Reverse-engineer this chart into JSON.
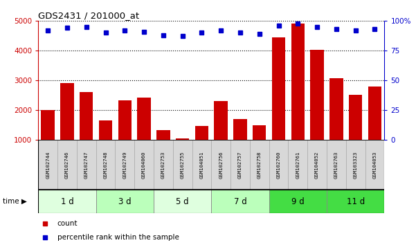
{
  "title": "GDS2431 / 201000_at",
  "samples": [
    "GSM102744",
    "GSM102746",
    "GSM102747",
    "GSM102748",
    "GSM102749",
    "GSM104060",
    "GSM102753",
    "GSM102755",
    "GSM104051",
    "GSM102756",
    "GSM102757",
    "GSM102758",
    "GSM102760",
    "GSM102761",
    "GSM104052",
    "GSM102763",
    "GSM103323",
    "GSM104053"
  ],
  "counts": [
    2000,
    2900,
    2600,
    1650,
    2330,
    2420,
    1310,
    1050,
    1460,
    2300,
    1700,
    1490,
    4450,
    4900,
    4030,
    3060,
    2520,
    2800
  ],
  "percentiles": [
    92,
    94,
    95,
    90,
    92,
    91,
    88,
    87,
    90,
    92,
    90,
    89,
    96,
    98,
    95,
    93,
    92,
    93
  ],
  "groups": [
    {
      "label": "1 d",
      "start": 0,
      "end": 3,
      "color": "#dfffdf"
    },
    {
      "label": "3 d",
      "start": 3,
      "end": 6,
      "color": "#bbffbb"
    },
    {
      "label": "5 d",
      "start": 6,
      "end": 9,
      "color": "#dfffdf"
    },
    {
      "label": "7 d",
      "start": 9,
      "end": 12,
      "color": "#bbffbb"
    },
    {
      "label": "9 d",
      "start": 12,
      "end": 15,
      "color": "#44dd44"
    },
    {
      "label": "11 d",
      "start": 15,
      "end": 18,
      "color": "#44dd44"
    }
  ],
  "bar_color": "#cc0000",
  "dot_color": "#0000cc",
  "ylim_left": [
    1000,
    5000
  ],
  "ylim_right": [
    0,
    100
  ],
  "yticks_left": [
    1000,
    2000,
    3000,
    4000,
    5000
  ],
  "yticks_right": [
    0,
    25,
    50,
    75,
    100
  ],
  "background_color": "#ffffff"
}
